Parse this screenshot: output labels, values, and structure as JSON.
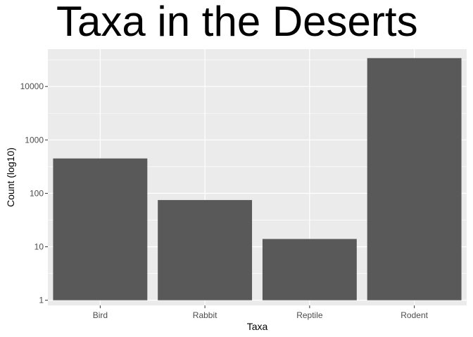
{
  "chart_data": {
    "type": "bar",
    "title": "Taxa in the Deserts",
    "xlabel": "Taxa",
    "ylabel": "Count (log10)",
    "categories": [
      "Bird",
      "Rabbit",
      "Reptile",
      "Rodent"
    ],
    "values": [
      450,
      75,
      14,
      34000
    ],
    "y_scale": "log10",
    "ylim": [
      0.8,
      50000
    ],
    "y_ticks": [
      1,
      10,
      100,
      1000,
      10000
    ],
    "y_tick_labels": [
      "1",
      "10",
      "100",
      "1000",
      "10000"
    ],
    "grid": true,
    "legend": "none",
    "colors": {
      "bar": "#595959",
      "panel": "#ebebeb",
      "grid": "#ffffff",
      "tick_text": "#4d4d4d",
      "axis_title": "#000000"
    }
  }
}
